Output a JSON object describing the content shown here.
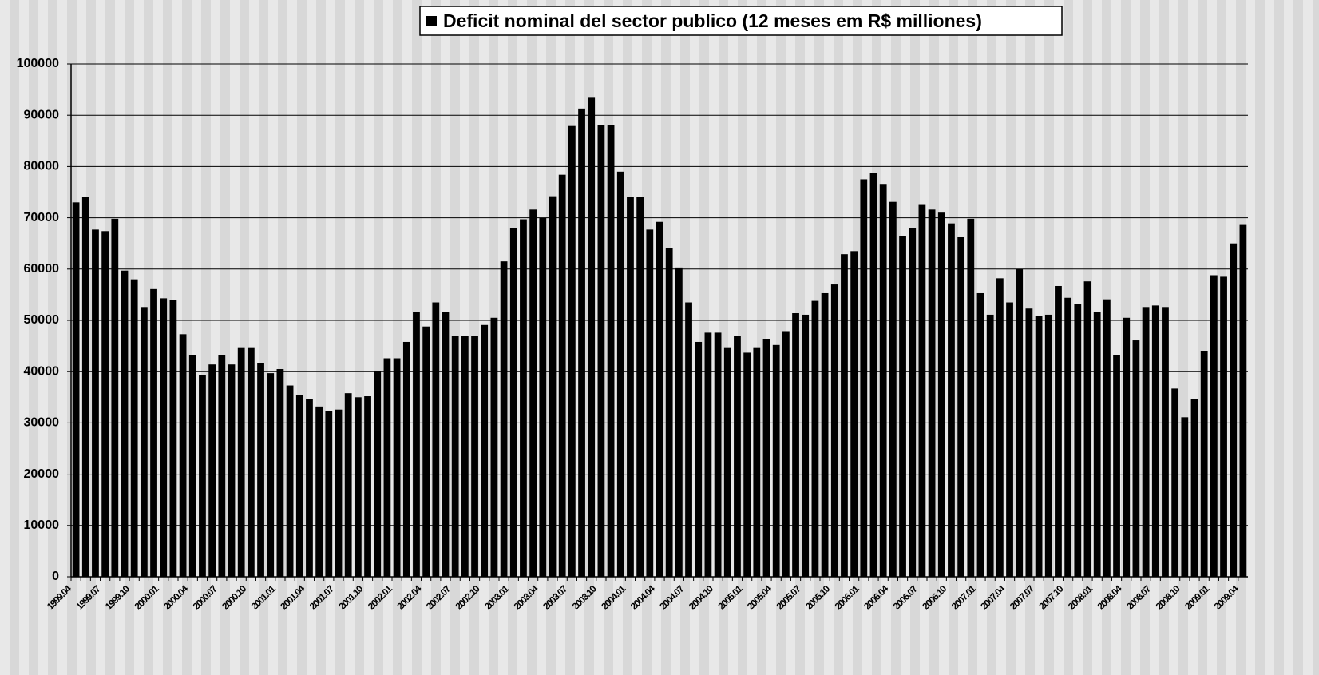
{
  "chart_data": {
    "type": "bar",
    "title": "Deficit nominal del sector publico (12 meses em R$ milliones)",
    "categories": [
      "1999.04",
      null,
      null,
      "1999.07",
      null,
      null,
      "1999.10",
      null,
      null,
      "2000.01",
      null,
      null,
      "2000.04",
      null,
      null,
      "2000.07",
      null,
      null,
      "2000.10",
      null,
      null,
      "2001.01",
      null,
      null,
      "2001.04",
      null,
      null,
      "2001.07",
      null,
      null,
      "2001.10",
      null,
      null,
      "2002.01",
      null,
      null,
      "2002.04",
      null,
      null,
      "2002.07",
      null,
      null,
      "2002.10",
      null,
      null,
      "2003.01",
      null,
      null,
      "2003.04",
      null,
      null,
      "2003.07",
      null,
      null,
      "2003.10",
      null,
      null,
      "2004.01",
      null,
      null,
      "2004.04",
      null,
      null,
      "2004.07",
      null,
      null,
      "2004.10",
      null,
      null,
      "2005.01",
      null,
      null,
      "2005.04",
      null,
      null,
      "2005.07",
      null,
      null,
      "2005.10",
      null,
      null,
      "2006.01",
      null,
      null,
      "2006.04",
      null,
      null,
      "2006.07",
      null,
      null,
      "2006.10",
      null,
      null,
      "2007.01",
      null,
      null,
      "2007.04",
      null,
      null,
      "2007.07",
      null,
      null,
      "2007.10",
      null,
      null,
      "2008.01",
      null,
      null,
      "2008.04",
      null,
      null,
      "2008.07",
      null,
      null,
      "2008.10",
      null,
      null,
      "2009.01",
      null,
      null,
      "2009.04"
    ],
    "series": [
      {
        "name": "Deficit nominal del sector publico (12 meses em R$ milliones)",
        "color": "#000000",
        "values": [
          73000,
          74000,
          67700,
          67400,
          69800,
          59700,
          58000,
          52600,
          56100,
          54300,
          54000,
          47300,
          43200,
          39400,
          41400,
          43200,
          41400,
          44600,
          44600,
          41700,
          39700,
          40500,
          37300,
          35500,
          34600,
          33200,
          32300,
          32600,
          35800,
          35000,
          35200,
          40000,
          42600,
          42600,
          45800,
          51700,
          48800,
          53500,
          51700,
          47000,
          47000,
          47000,
          49100,
          50500,
          61500,
          68000,
          69700,
          71600,
          70000,
          74200,
          78400,
          87900,
          91300,
          93400,
          88100,
          88100,
          79000,
          74000,
          74000,
          67700,
          69200,
          64100,
          60300,
          53500,
          45800,
          47600,
          47600,
          44600,
          47000,
          43700,
          44600,
          46400,
          45200,
          47900,
          51400,
          51100,
          53800,
          55300,
          57000,
          62900,
          63500,
          77500,
          78700,
          76600,
          73100,
          66500,
          68000,
          72500,
          71600,
          71000,
          68900,
          66200,
          69800,
          55300,
          51100,
          58200,
          53500,
          60000,
          52300,
          50800,
          51100,
          56700,
          54400,
          53200,
          57600,
          51700,
          54100,
          43200,
          50500,
          46100,
          52600,
          52900,
          52600,
          36700,
          31100,
          34600,
          44000,
          58800,
          58500,
          65000,
          68600
        ]
      }
    ],
    "ylim": [
      0,
      100000
    ],
    "yticks": [
      0,
      10000,
      20000,
      30000,
      40000,
      50000,
      60000,
      70000,
      80000,
      90000,
      100000
    ],
    "grid": true
  }
}
